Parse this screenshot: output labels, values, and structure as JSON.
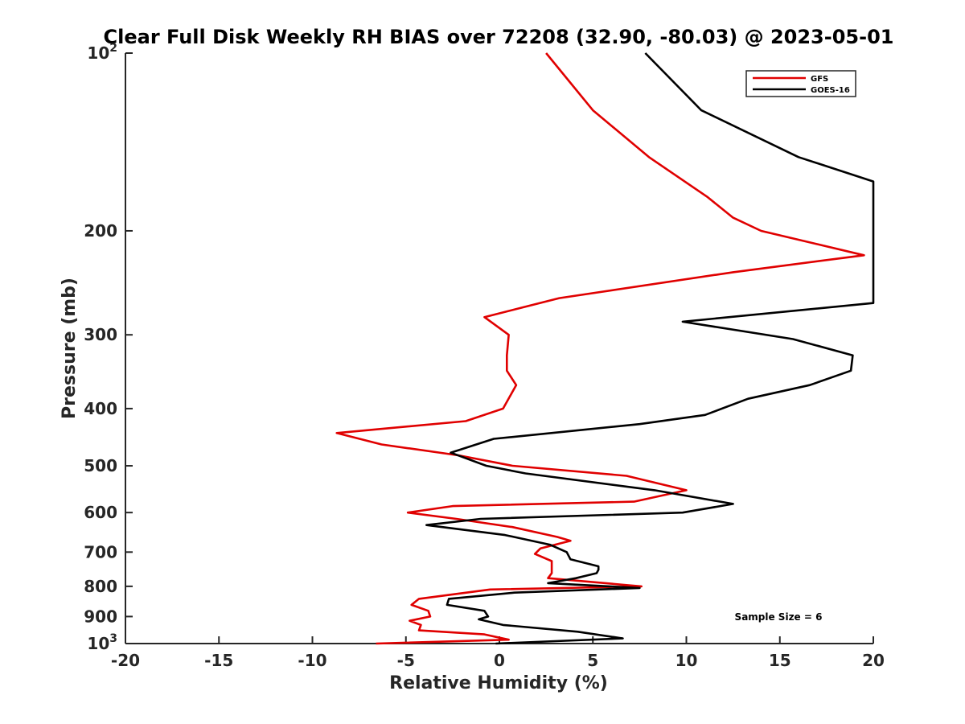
{
  "chart_data": {
    "type": "line",
    "title": "Clear Full Disk Weekly RH BIAS over 72208 (32.90, -80.03) @ 2023-05-01",
    "xlabel": "Relative Humidity (%)",
    "ylabel": "Pressure (mb)",
    "xlim": [
      -20,
      20
    ],
    "ylim": [
      100,
      1000
    ],
    "y_scale": "log",
    "y_reversed": true,
    "x_ticks": [
      -20,
      -15,
      -10,
      -5,
      0,
      5,
      10,
      15,
      20
    ],
    "x_tick_labels": [
      "-20",
      "-15",
      "-10",
      "-5",
      "0",
      "5",
      "10",
      "15",
      "20"
    ],
    "y_ticks": [
      100,
      200,
      300,
      400,
      500,
      600,
      700,
      800,
      900,
      1000
    ],
    "y_tick_labels": [
      {
        "base": "10",
        "sup": "2"
      },
      {
        "base": "200",
        "sup": ""
      },
      {
        "base": "300",
        "sup": ""
      },
      {
        "base": "400",
        "sup": ""
      },
      {
        "base": "500",
        "sup": ""
      },
      {
        "base": "600",
        "sup": ""
      },
      {
        "base": "700",
        "sup": ""
      },
      {
        "base": "800",
        "sup": ""
      },
      {
        "base": "900",
        "sup": ""
      },
      {
        "base": "10",
        "sup": "3"
      }
    ],
    "grid": false,
    "legend_position": "top-right",
    "annotation": "Sample Size = 6",
    "series": [
      {
        "name": "GFS",
        "color": "#e00000",
        "points": [
          [
            2.5,
            100
          ],
          [
            5,
            125
          ],
          [
            8,
            150
          ],
          [
            11.1,
            175
          ],
          [
            12.5,
            190
          ],
          [
            14,
            200
          ],
          [
            19.5,
            220
          ],
          [
            12.5,
            235
          ],
          [
            3.2,
            260
          ],
          [
            -0.8,
            280
          ],
          [
            0.5,
            300
          ],
          [
            0.4,
            325
          ],
          [
            0.4,
            345
          ],
          [
            0.9,
            365
          ],
          [
            0.2,
            400
          ],
          [
            -1.8,
            420
          ],
          [
            -8.7,
            440
          ],
          [
            -6.3,
            460
          ],
          [
            -2.2,
            480
          ],
          [
            0.7,
            500
          ],
          [
            6.8,
            520
          ],
          [
            10,
            550
          ],
          [
            7.2,
            575
          ],
          [
            -2.5,
            585
          ],
          [
            -4.9,
            600
          ],
          [
            -2.3,
            615
          ],
          [
            0.7,
            635
          ],
          [
            3.1,
            660
          ],
          [
            3.8,
            670
          ],
          [
            2.2,
            690
          ],
          [
            1.9,
            705
          ],
          [
            2.8,
            725
          ],
          [
            2.8,
            745
          ],
          [
            2.8,
            760
          ],
          [
            2.6,
            775
          ],
          [
            7.6,
            800
          ],
          [
            -0.5,
            810
          ],
          [
            -4.3,
            840
          ],
          [
            -4.7,
            860
          ],
          [
            -3.8,
            880
          ],
          [
            -3.7,
            900
          ],
          [
            -4.8,
            915
          ],
          [
            -4.2,
            930
          ],
          [
            -4.3,
            950
          ],
          [
            -0.8,
            965
          ],
          [
            0.5,
            985
          ],
          [
            -6.6,
            1000
          ]
        ]
      },
      {
        "name": "GOES-16",
        "color": "#000000",
        "points": [
          [
            7.8,
            100
          ],
          [
            10.8,
            125
          ],
          [
            16,
            150
          ],
          [
            20,
            165
          ],
          [
            20,
            265
          ],
          [
            9.8,
            285
          ],
          [
            15.7,
            305
          ],
          [
            18.9,
            325
          ],
          [
            18.8,
            345
          ],
          [
            16.6,
            365
          ],
          [
            13.3,
            385
          ],
          [
            11,
            410
          ],
          [
            7.5,
            425
          ],
          [
            -0.3,
            450
          ],
          [
            -2.6,
            475
          ],
          [
            -0.7,
            500
          ],
          [
            1.4,
            515
          ],
          [
            8.3,
            550
          ],
          [
            12.5,
            580
          ],
          [
            9.8,
            600
          ],
          [
            -1,
            615
          ],
          [
            -3.9,
            630
          ],
          [
            0.3,
            655
          ],
          [
            2.7,
            680
          ],
          [
            3.6,
            700
          ],
          [
            3.8,
            720
          ],
          [
            5.3,
            740
          ],
          [
            5.3,
            750
          ],
          [
            5.2,
            760
          ],
          [
            4.1,
            775
          ],
          [
            2.6,
            790
          ],
          [
            7.5,
            805
          ],
          [
            0.8,
            820
          ],
          [
            -2.7,
            840
          ],
          [
            -2.8,
            860
          ],
          [
            -0.8,
            880
          ],
          [
            -0.6,
            900
          ],
          [
            -1.1,
            910
          ],
          [
            0.2,
            930
          ],
          [
            4.2,
            955
          ],
          [
            6.6,
            980
          ],
          [
            -0.2,
            1000
          ]
        ]
      }
    ]
  }
}
